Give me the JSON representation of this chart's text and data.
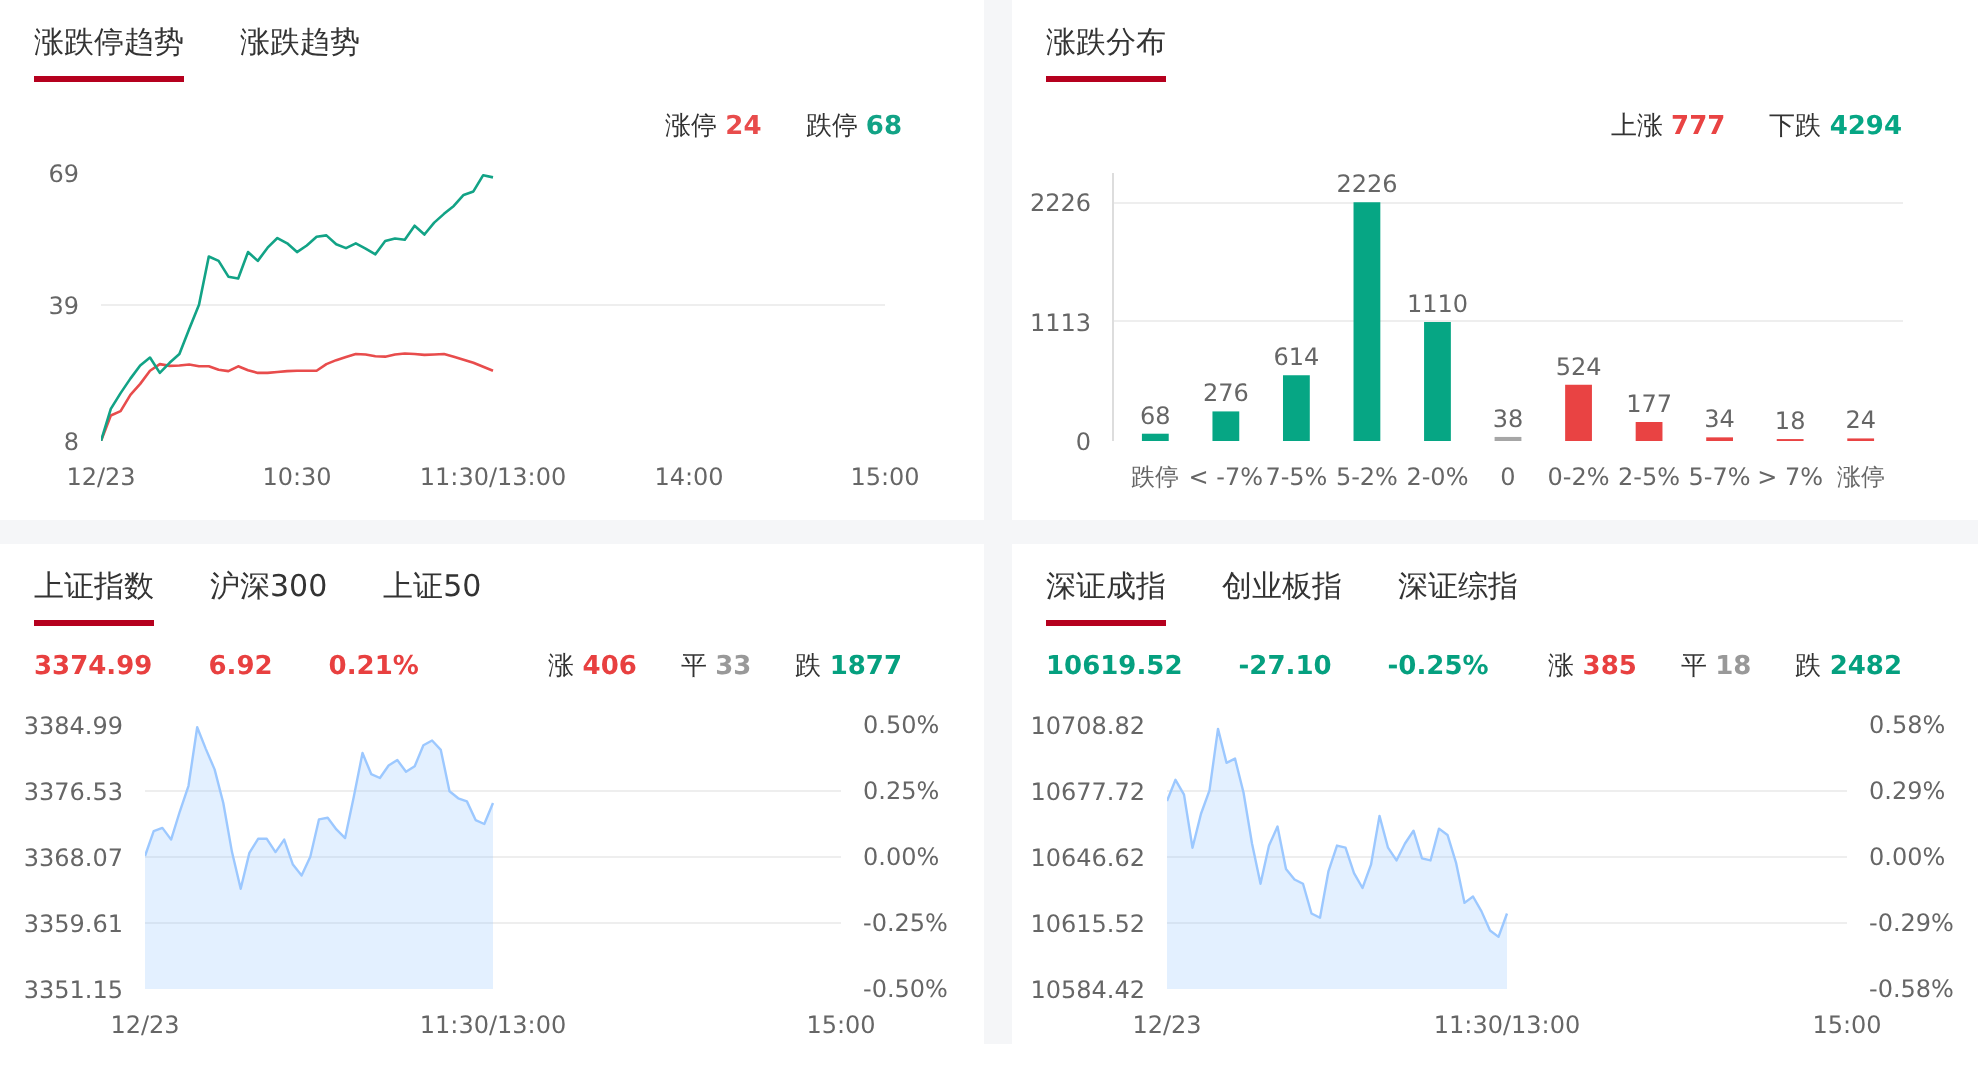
{
  "chart_data": [
    {
      "type": "line",
      "title": "涨跌停趋势",
      "annotations": [
        "涨跌趋势",
        "涨停 24",
        "跌停 68"
      ],
      "categories": [
        "12/23",
        null,
        null,
        null,
        null,
        null,
        null,
        null,
        null,
        null,
        null,
        null,
        null,
        null,
        null,
        null,
        null,
        null,
        null,
        null,
        "10:30",
        null,
        null,
        null,
        null,
        null,
        null,
        null,
        null,
        null,
        null,
        null,
        null,
        null,
        null,
        null,
        null,
        null,
        null,
        null,
        "11:30/13:00",
        null,
        null,
        null,
        null,
        null,
        null,
        null,
        null,
        null,
        null,
        null,
        null,
        null,
        null,
        null,
        null,
        null,
        null,
        null,
        "14:00",
        null,
        null,
        null,
        null,
        null,
        null,
        null,
        null,
        null,
        null,
        null,
        null,
        null,
        null,
        null,
        null,
        null,
        null,
        null,
        "15:00"
      ],
      "ylim": [
        8,
        69
      ],
      "yticks": [
        8,
        39,
        69
      ],
      "grid": "y",
      "series": [
        {
          "color": "#e84c4c",
          "values": [
            8,
            13.8,
            14.8,
            18.5,
            21,
            24,
            25.5,
            25.1,
            25.2,
            25.4,
            25,
            25,
            24.2,
            23.9,
            25,
            24.1,
            23.5,
            23.5,
            23.7,
            23.9,
            24,
            24,
            24,
            25.5,
            26.4,
            27.1,
            27.8,
            27.7,
            27.3,
            27.2,
            27.7,
            27.9,
            27.8,
            27.6,
            27.7,
            27.8,
            27.2,
            26.5,
            25.8,
            24.9,
            24,
            null,
            null,
            null,
            null,
            null,
            null,
            null,
            null,
            null,
            null,
            null,
            null,
            null,
            null,
            null,
            null,
            null,
            null,
            null,
            null,
            null,
            null,
            null,
            null,
            null,
            null,
            null,
            null,
            null,
            null,
            null,
            null,
            null,
            null,
            null,
            null,
            null,
            null,
            null,
            null
          ]
        },
        {
          "color": "#12a386",
          "values": [
            8,
            15.3,
            18.9,
            22.2,
            25.2,
            27,
            23.5,
            25.8,
            27.8,
            33.5,
            39,
            50,
            49,
            45.4,
            45,
            51,
            49,
            52,
            54.2,
            53,
            51,
            52.5,
            54.5,
            54.8,
            52.8,
            51.9,
            53,
            51.8,
            50.5,
            53.5,
            54.1,
            53.8,
            57,
            55,
            57.7,
            59.7,
            61.5,
            64,
            64.8,
            68.5,
            68,
            null,
            null,
            null,
            null,
            null,
            null,
            null,
            null,
            null,
            null,
            null,
            null,
            null,
            null,
            null,
            null,
            null,
            null,
            null,
            null,
            null,
            null,
            null,
            null,
            null,
            null,
            null,
            null,
            null,
            null,
            null,
            null,
            null,
            null,
            null,
            null,
            null,
            null,
            null,
            null
          ]
        }
      ]
    },
    {
      "type": "bar",
      "title": "涨跌分布",
      "annotations": [
        "上涨 777",
        "下跌 4294"
      ],
      "categories": [
        "跌停",
        "< -7%",
        "7-5%",
        "5-2%",
        "2-0%",
        "0",
        "0-2%",
        "2-5%",
        "5-7%",
        "> 7%",
        "涨停"
      ],
      "values": [
        68,
        276,
        614,
        2226,
        1110,
        38,
        524,
        177,
        34,
        18,
        24
      ],
      "colors": [
        "#06a684",
        "#06a684",
        "#06a684",
        "#06a684",
        "#06a684",
        "#a6a6a6",
        "#e94343",
        "#e94343",
        "#e94343",
        "#e94343",
        "#e94343"
      ],
      "ylim": [
        0,
        2500
      ],
      "yticks": [
        0,
        1113,
        2226
      ],
      "grid": "y",
      "data_labels": true
    },
    {
      "type": "area",
      "title": "上证指数",
      "annotations": [
        "沪深300",
        "上证50",
        "3374.99",
        "6.92",
        "0.21%",
        "涨 406",
        "平 33",
        "跌 1877"
      ],
      "categories": [
        "12/23",
        null,
        null,
        null,
        null,
        null,
        null,
        null,
        null,
        null,
        null,
        null,
        null,
        null,
        null,
        null,
        null,
        null,
        null,
        null,
        null,
        null,
        null,
        null,
        null,
        null,
        null,
        null,
        null,
        null,
        null,
        null,
        null,
        null,
        null,
        null,
        null,
        null,
        null,
        null,
        "11:30/13:00",
        null,
        null,
        null,
        null,
        null,
        null,
        null,
        null,
        null,
        null,
        null,
        null,
        null,
        null,
        null,
        null,
        null,
        null,
        null,
        null,
        null,
        null,
        null,
        null,
        null,
        null,
        null,
        null,
        null,
        null,
        null,
        null,
        null,
        null,
        null,
        null,
        null,
        null,
        null,
        "15:00"
      ],
      "ylim": [
        3351.15,
        3384.99
      ],
      "yticks": [
        3351.15,
        3359.61,
        3368.07,
        3376.53,
        3384.99
      ],
      "y2lim": [
        -0.5,
        0.5
      ],
      "y2ticks": [
        {
          "value": -0.5,
          "label": "-0.50%"
        },
        {
          "value": -0.25,
          "label": "-0.25%"
        },
        {
          "value": 0,
          "label": "0.00%"
        },
        {
          "value": 0.25,
          "label": "0.25%"
        },
        {
          "value": 0.5,
          "label": "0.50%"
        }
      ],
      "grid": "y",
      "series": [
        {
          "color": "#9cc8ff",
          "values": [
            3368.2,
            3371.4,
            3371.8,
            3370.3,
            3373.9,
            3377.2,
            3384.7,
            3381.9,
            3379.3,
            3375.0,
            3368.7,
            3364.0,
            3368.6,
            3370.4,
            3370.4,
            3368.7,
            3370.3,
            3367.1,
            3365.7,
            3368.1,
            3372.9,
            3373.1,
            3371.6,
            3370.5,
            3375.8,
            3381.4,
            3378.7,
            3378.2,
            3379.8,
            3380.5,
            3379.0,
            3379.7,
            3382.4,
            3383.0,
            3381.8,
            3376.5,
            3375.6,
            3375.2,
            3372.8,
            3372.3,
            3375.0,
            null,
            null,
            null,
            null,
            null,
            null,
            null,
            null,
            null,
            null,
            null,
            null,
            null,
            null,
            null,
            null,
            null,
            null,
            null,
            null,
            null,
            null,
            null,
            null,
            null,
            null,
            null,
            null,
            null,
            null,
            null,
            null,
            null,
            null,
            null,
            null,
            null,
            null,
            null,
            null
          ]
        }
      ]
    },
    {
      "type": "area",
      "title": "深证成指",
      "annotations": [
        "创业板指",
        "深证综指",
        "10619.52",
        "-27.10",
        "-0.25%",
        "涨 385",
        "平 18",
        "跌 2482"
      ],
      "categories": [
        "12/23",
        null,
        null,
        null,
        null,
        null,
        null,
        null,
        null,
        null,
        null,
        null,
        null,
        null,
        null,
        null,
        null,
        null,
        null,
        null,
        null,
        null,
        null,
        null,
        null,
        null,
        null,
        null,
        null,
        null,
        null,
        null,
        null,
        null,
        null,
        null,
        null,
        null,
        null,
        null,
        "11:30/13:00",
        null,
        null,
        null,
        null,
        null,
        null,
        null,
        null,
        null,
        null,
        null,
        null,
        null,
        null,
        null,
        null,
        null,
        null,
        null,
        null,
        null,
        null,
        null,
        null,
        null,
        null,
        null,
        null,
        null,
        null,
        null,
        null,
        null,
        null,
        null,
        null,
        null,
        null,
        null,
        "15:00"
      ],
      "ylim": [
        10584.42,
        10708.82
      ],
      "yticks": [
        10584.42,
        10615.52,
        10646.62,
        10677.72,
        10708.82
      ],
      "y2lim": [
        -0.58,
        0.58
      ],
      "y2ticks": [
        {
          "value": -0.58,
          "label": "-0.58%"
        },
        {
          "value": -0.29,
          "label": "-0.29%"
        },
        {
          "value": 0,
          "label": "0.00%"
        },
        {
          "value": 0.29,
          "label": "0.29%"
        },
        {
          "value": 0.58,
          "label": "0.58%"
        }
      ],
      "grid": "y",
      "series": [
        {
          "color": "#9cc8ff",
          "values": [
            10673,
            10683,
            10676,
            10651,
            10667,
            10678,
            10707,
            10691,
            10693,
            10677,
            10653,
            10634,
            10652,
            10661,
            10641,
            10636,
            10634,
            10620,
            10618,
            10640,
            10652,
            10651,
            10639,
            10632,
            10643,
            10666,
            10651,
            10645,
            10653,
            10659,
            10646,
            10645,
            10660,
            10657,
            10644,
            10625,
            10628,
            10621,
            10612,
            10609,
            10620,
            null,
            null,
            null,
            null,
            null,
            null,
            null,
            null,
            null,
            null,
            null,
            null,
            null,
            null,
            null,
            null,
            null,
            null,
            null,
            null,
            null,
            null,
            null,
            null,
            null,
            null,
            null,
            null,
            null,
            null,
            null,
            null,
            null,
            null,
            null,
            null,
            null,
            null,
            null,
            null
          ]
        }
      ]
    }
  ]
}
